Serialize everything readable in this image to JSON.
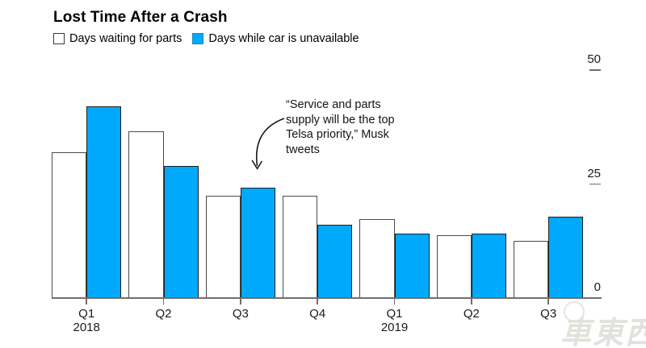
{
  "title": "Lost Time After a Crash",
  "watermark": "車東西",
  "chart_data": {
    "type": "bar",
    "title": "Lost Time After a Crash",
    "categories": [
      {
        "label": "Q1",
        "year": "2018"
      },
      {
        "label": "Q2",
        "year": ""
      },
      {
        "label": "Q3",
        "year": ""
      },
      {
        "label": "Q4",
        "year": ""
      },
      {
        "label": "Q1",
        "year": "2019"
      },
      {
        "label": "Q2",
        "year": ""
      },
      {
        "label": "Q3",
        "year": ""
      }
    ],
    "series": [
      {
        "name": "Days waiting for parts",
        "style": "white",
        "values": [
          32,
          36.5,
          22.4,
          22.4,
          17.3,
          13.8,
          12.6
        ]
      },
      {
        "name": "Days while car is unavailable",
        "style": "blue",
        "values": [
          42,
          29,
          24.2,
          16,
          14.1,
          14.2,
          17.8
        ]
      }
    ],
    "xlabel": "",
    "ylabel": "",
    "ylim": [
      0,
      50
    ],
    "yticks": [
      0,
      25,
      50
    ],
    "grid": "off",
    "legend_position": "top-left",
    "annotation": {
      "lines": [
        "“Service and parts",
        "supply will be the top",
        "Telsa priority,” Musk",
        "tweets"
      ],
      "points_to": "2018 Q3 blue bar"
    },
    "colors": {
      "blue_bar": "#00a9fb",
      "white_bar": "#ffffff",
      "bar_outline": "#3f3f3f",
      "axis": "#6f6f6f",
      "text": "#000000"
    }
  }
}
